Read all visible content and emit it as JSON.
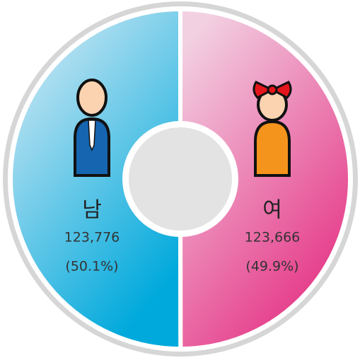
{
  "chart_data": {
    "type": "pie",
    "categories": [
      "남",
      "여"
    ],
    "values": [
      123776,
      123666
    ],
    "value_labels": [
      "123,776",
      "123,666"
    ],
    "percents": [
      50.1,
      49.9
    ],
    "percent_labels": [
      "(50.1%)",
      "(49.9%)"
    ],
    "colors": [
      "#00a9dc",
      "#e4287e"
    ]
  }
}
